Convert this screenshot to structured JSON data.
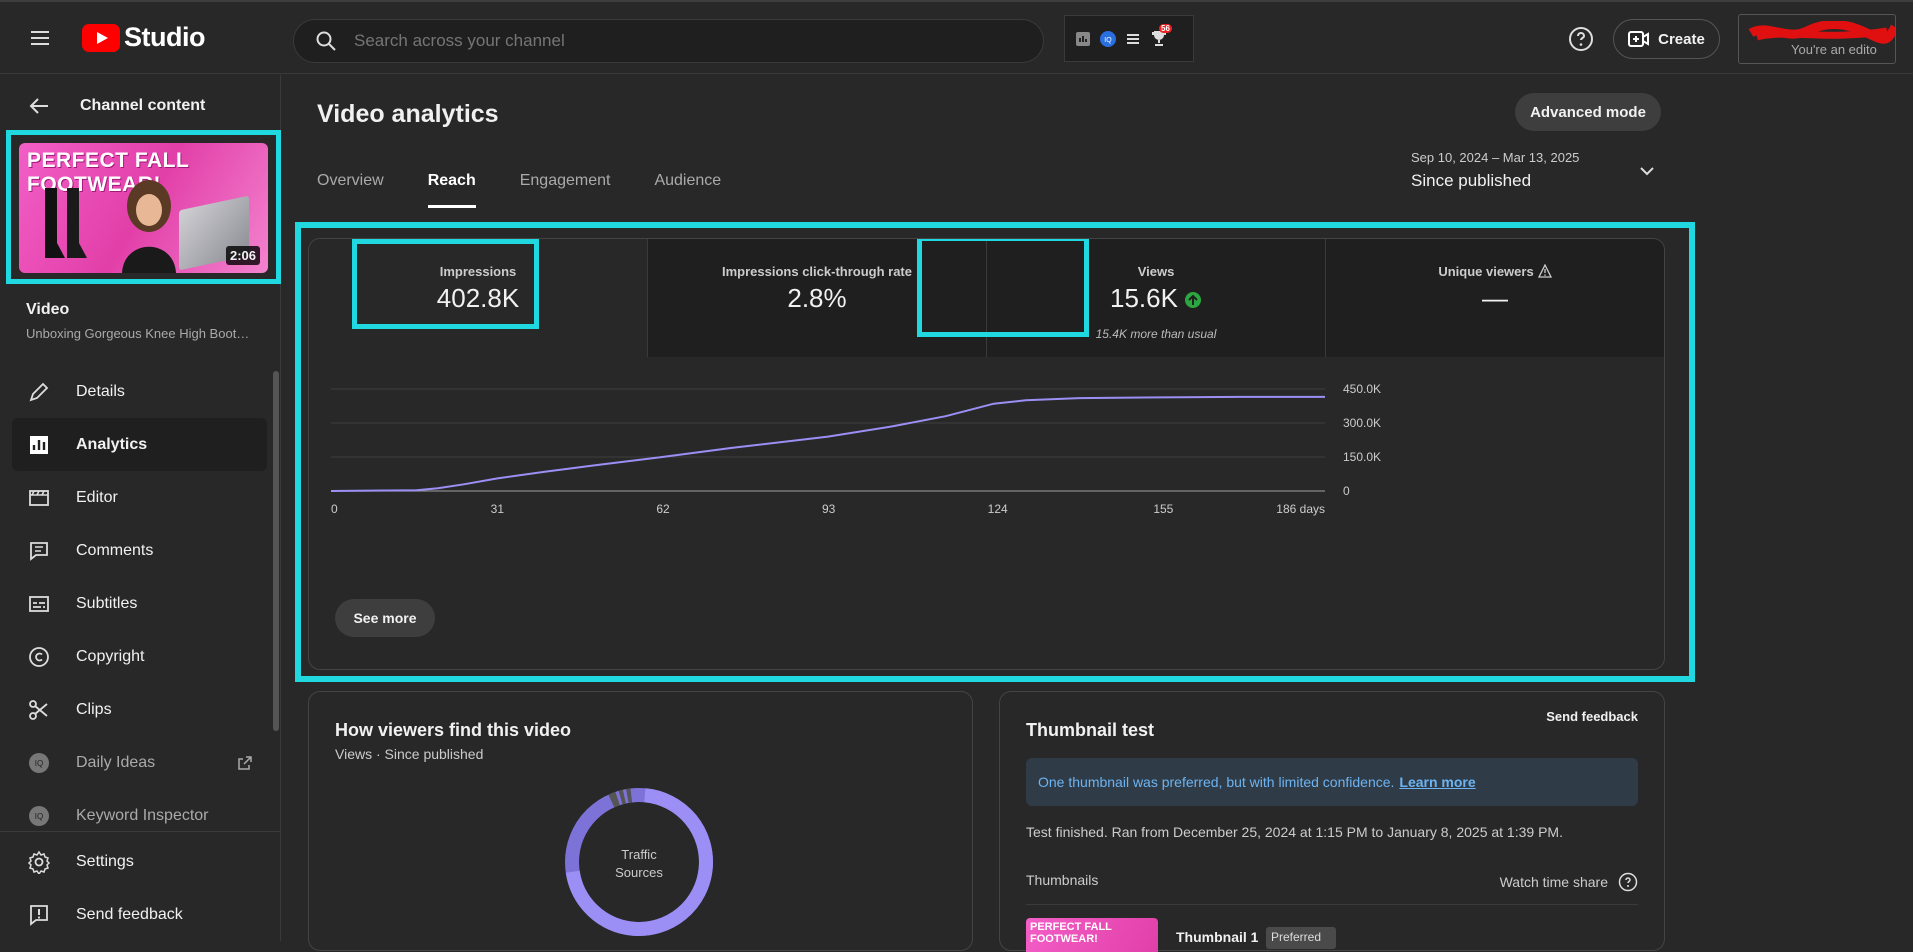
{
  "app": {
    "name": "Studio"
  },
  "search": {
    "placeholder": "Search across your channel"
  },
  "extensions": {
    "badge_count": "56"
  },
  "header": {
    "create_label": "Create",
    "account_subtitle": "You're an edito"
  },
  "sidebar": {
    "back_label": "Channel content",
    "thumbnail": {
      "title": "PERFECT FALL FOOTWEAR!",
      "duration": "2:06"
    },
    "video_label": "Video",
    "video_title": "Unboxing Gorgeous Knee High Boot…",
    "items": [
      {
        "label": "Details",
        "icon": "pencil-icon"
      },
      {
        "label": "Analytics",
        "icon": "analytics-icon"
      },
      {
        "label": "Editor",
        "icon": "film-icon"
      },
      {
        "label": "Comments",
        "icon": "comment-icon"
      },
      {
        "label": "Subtitles",
        "icon": "subtitles-icon"
      },
      {
        "label": "Copyright",
        "icon": "copyright-icon"
      },
      {
        "label": "Clips",
        "icon": "scissors-icon"
      },
      {
        "label": "Daily Ideas",
        "icon": "vidiq-icon"
      },
      {
        "label": "Keyword Inspector",
        "icon": "vidiq-icon"
      }
    ],
    "bottom": [
      {
        "label": "Settings",
        "icon": "gear-icon"
      },
      {
        "label": "Send feedback",
        "icon": "feedback-icon"
      }
    ]
  },
  "main": {
    "title": "Video analytics",
    "advanced_label": "Advanced mode",
    "tabs": [
      {
        "label": "Overview"
      },
      {
        "label": "Reach"
      },
      {
        "label": "Engagement"
      },
      {
        "label": "Audience"
      }
    ],
    "date_range": {
      "dates": "Sep 10, 2024 – Mar 13, 2025",
      "label": "Since published"
    },
    "metrics": [
      {
        "label": "Impressions",
        "value": "402.8K",
        "note": ""
      },
      {
        "label": "Impressions click-through rate",
        "value": "2.8%",
        "note": ""
      },
      {
        "label": "Views",
        "value": "15.6K",
        "note": "15.4K more than usual"
      },
      {
        "label": "Unique viewers",
        "value": "—",
        "note": ""
      }
    ],
    "see_more_label": "See more",
    "traffic": {
      "title": "How viewers find this video",
      "subtitle": "Views · Since published",
      "donut_label_1": "Traffic",
      "donut_label_2": "Sources"
    },
    "thumbnail_test": {
      "send_feedback": "Send feedback",
      "title": "Thumbnail test",
      "notice": "One thumbnail was preferred, but with limited confidence.",
      "learn_more": "Learn more",
      "info": "Test finished. Ran from December 25, 2024 at 1:15 PM to January 8, 2025 at 1:39 PM.",
      "col_thumbnails": "Thumbnails",
      "col_watch": "Watch time share",
      "row1_thumb": "PERFECT FALL FOOTWEAR!",
      "row1_label": "Thumbnail 1",
      "row1_badge": "Preferred"
    }
  },
  "colors": {
    "accent": "#1fd8e0",
    "line": "#9b8ff5",
    "up": "#2ba640"
  },
  "chart_data": {
    "type": "line",
    "title": "",
    "xlabel": "",
    "ylabel": "",
    "x_ticks": [
      "0",
      "31",
      "62",
      "93",
      "124",
      "155",
      "186 days"
    ],
    "y_ticks": [
      "0",
      "150.0K",
      "300.0K",
      "450.0K"
    ],
    "ylim": [
      0,
      450000
    ],
    "xlim": [
      0,
      186
    ],
    "grid": true,
    "series": [
      {
        "name": "",
        "x": [
          0,
          10,
          16,
          20,
          25,
          31,
          40,
          50,
          62,
          75,
          93,
          105,
          115,
          124,
          130,
          140,
          155,
          170,
          186
        ],
        "y": [
          0,
          2000,
          3000,
          12000,
          30000,
          55000,
          85000,
          115000,
          150000,
          190000,
          240000,
          285000,
          330000,
          385000,
          400000,
          410000,
          413000,
          415000,
          415000
        ]
      }
    ]
  }
}
